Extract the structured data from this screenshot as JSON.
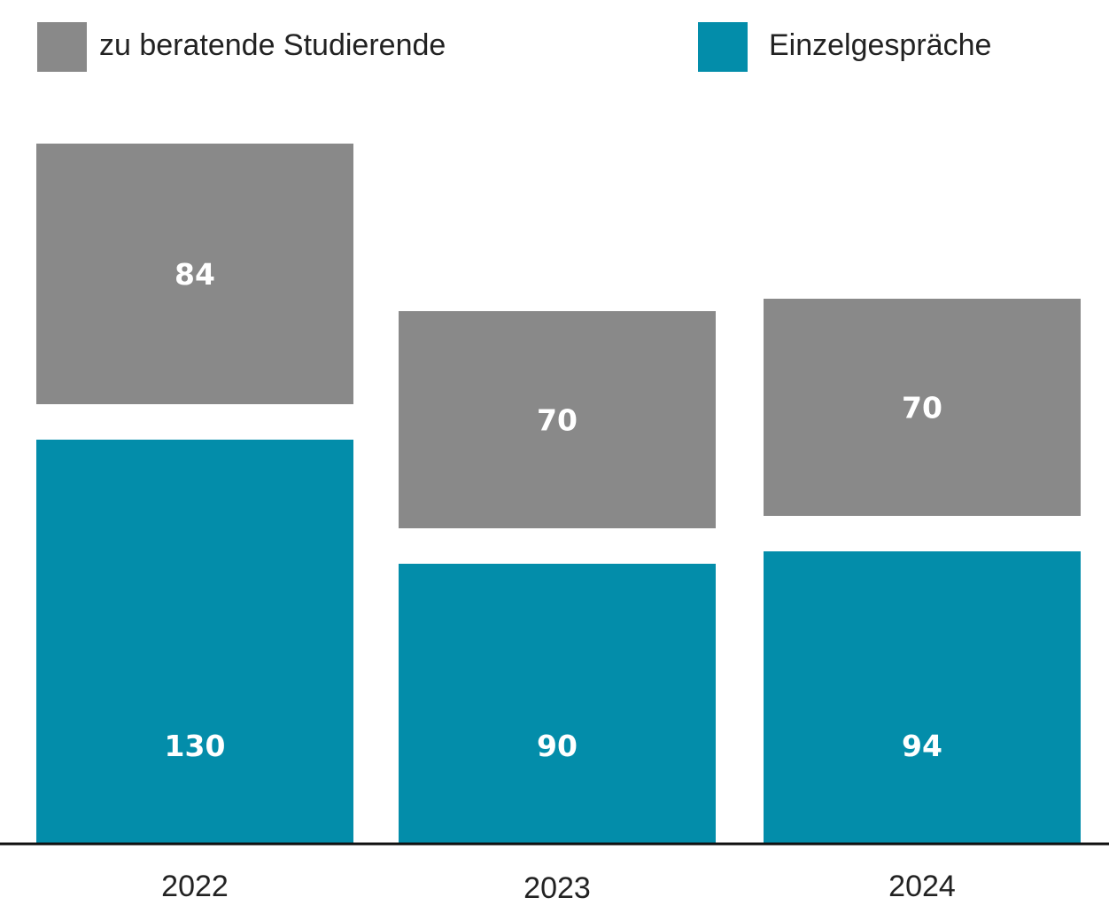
{
  "chart_data": {
    "type": "bar",
    "categories": [
      "2022",
      "2023",
      "2024"
    ],
    "series": [
      {
        "name": "zu beratende Studierende",
        "values": [
          84,
          70,
          70
        ],
        "color": "#898989"
      },
      {
        "name": "Einzelgespräche",
        "values": [
          130,
          90,
          94
        ],
        "color": "#038DAA"
      }
    ],
    "title": "",
    "xlabel": "",
    "ylabel": "",
    "legend_position": "top",
    "grid": false
  }
}
